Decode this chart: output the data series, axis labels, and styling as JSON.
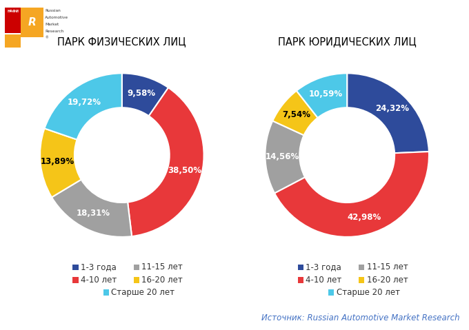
{
  "title1": "ПАРК ФИЗИЧЕСКИХ ЛИЦ",
  "title2": "ПАРК ЮРИДИЧЕСКИХ ЛИЦ",
  "source": "Источник: Russian Automotive Market Research",
  "chart1": {
    "values": [
      9.58,
      38.5,
      18.31,
      13.89,
      19.72
    ],
    "labels": [
      "9,58%",
      "38,50%",
      "18,31%",
      "13,89%",
      "19,72%"
    ],
    "colors": [
      "#2E4B9B",
      "#E8383A",
      "#A0A0A0",
      "#F5C518",
      "#4DC8E8"
    ],
    "label_colors": [
      "white",
      "white",
      "white",
      "black",
      "white"
    ]
  },
  "chart2": {
    "values": [
      24.32,
      42.98,
      14.56,
      7.54,
      10.59
    ],
    "labels": [
      "24,32%",
      "42,98%",
      "14,56%",
      "7,54%",
      "10,59%"
    ],
    "colors": [
      "#2E4B9B",
      "#E8383A",
      "#A0A0A0",
      "#F5C518",
      "#4DC8E8"
    ],
    "label_colors": [
      "white",
      "white",
      "white",
      "black",
      "white"
    ]
  },
  "legend_items": [
    {
      "label": "1-3 года",
      "color": "#2E4B9B"
    },
    {
      "label": "11-15 лет",
      "color": "#A0A0A0"
    },
    {
      "label": "4-10 лет",
      "color": "#E8383A"
    },
    {
      "label": "16-20 лет",
      "color": "#F5C518"
    },
    {
      "label": "Старше 20 лет",
      "color": "#4DC8E8"
    }
  ],
  "startangle": 90,
  "counterclock": false,
  "donut_width": 0.42,
  "wedge_edgecolor": "white",
  "wedge_linewidth": 1.5,
  "label_fontsize": 8.5,
  "title_fontsize": 10.5,
  "legend_fontsize": 8.5,
  "source_fontsize": 8.5,
  "background_color": "#FFFFFF"
}
